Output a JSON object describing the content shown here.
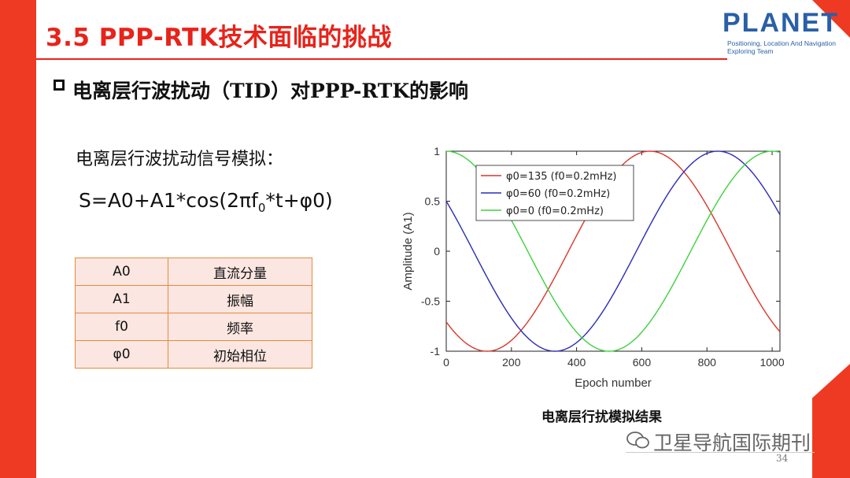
{
  "title": "3.5 PPP-RTK技术面临的挑战",
  "logo": {
    "word": "PLANET",
    "line1": "Positioning, Location And Navigation",
    "line2": "Exploring Team"
  },
  "subtitle": "电离层行波扰动（TID）对PPP-RTK的影响",
  "sim_label": "电离层行波扰动信号模拟：",
  "formula": {
    "pre": "S=A0+A1*cos(2πf",
    "sub": "0",
    "post": "*t+φ0)"
  },
  "params": [
    {
      "symbol": "A0",
      "meaning": "直流分量"
    },
    {
      "symbol": "A1",
      "meaning": "振幅"
    },
    {
      "symbol": "f0",
      "meaning": "频率"
    },
    {
      "symbol": "φ0",
      "meaning": "初始相位"
    }
  ],
  "caption": "电离层行扰模拟结果",
  "watermark": "卫星导航国际期刊",
  "page_number": "34",
  "colors": {
    "accent": "#ee3a23",
    "title": "#e8231a",
    "logo": "#2a5fa8"
  },
  "chart_data": {
    "type": "line",
    "xlabel": "Epoch number",
    "ylabel": "Amplitude (A1)",
    "xlim": [
      0,
      1024
    ],
    "ylim": [
      -1,
      1
    ],
    "xticks": [
      "0",
      "200",
      "400",
      "600",
      "800",
      "1000"
    ],
    "yticks": [
      "1",
      "0.5",
      "0",
      "-0.5",
      "-1"
    ],
    "legend_position": "top-left",
    "series": [
      {
        "name": "φ0=135 (f0=0.2mHz)",
        "color": "#d9372a",
        "phase_deg": 135,
        "freq_mHz": 0.2
      },
      {
        "name": "φ0=60   (f0=0.2mHz)",
        "color": "#2b2bb8",
        "phase_deg": 60,
        "freq_mHz": 0.2
      },
      {
        "name": "φ0=0     (f0=0.2mHz)",
        "color": "#3ed13e",
        "phase_deg": 0,
        "freq_mHz": 0.2
      }
    ],
    "period_epochs": 1000
  }
}
